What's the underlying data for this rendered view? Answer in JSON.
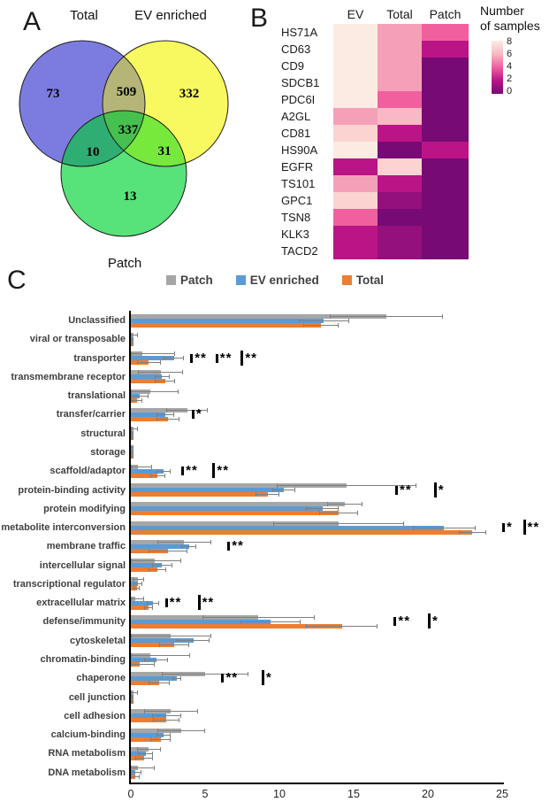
{
  "chart_data": [
    {
      "type": "venn",
      "panel_label": "A",
      "set_labels": [
        "Total",
        "EV enriched",
        "Patch"
      ],
      "regions": {
        "total": 73,
        "ev": 332,
        "patch": 13,
        "total_ev": 509,
        "total_patch": 10,
        "ev_patch": 31,
        "center": 337
      },
      "colors": {
        "total": "#7c7ce0",
        "ev": "#f8f860",
        "patch": "#57e27a",
        "total_ev": "#b5b578",
        "total_patch": "#2fae74",
        "ev_patch": "#77e93c",
        "center": "#46c04e",
        "outline": "#1a1a1a"
      }
    },
    {
      "type": "heatmap",
      "panel_label": "B",
      "columns": [
        "EV",
        "Total",
        "Patch"
      ],
      "rows": [
        "HS71A",
        "CD63",
        "CD9",
        "SDCB1",
        "PDC6I",
        "A2GL",
        "CD81",
        "HS90A",
        "EGFR",
        "TS101",
        "GPC1",
        "TSN8",
        "KLK3",
        "TACD2"
      ],
      "values": [
        [
          8,
          5,
          4
        ],
        [
          8,
          5,
          2
        ],
        [
          8,
          5,
          0
        ],
        [
          8,
          5,
          0
        ],
        [
          8,
          4,
          0
        ],
        [
          5,
          6,
          0
        ],
        [
          7,
          2,
          0
        ],
        [
          8,
          0,
          2
        ],
        [
          2,
          7,
          0
        ],
        [
          5,
          2,
          0
        ],
        [
          7,
          1,
          0
        ],
        [
          4,
          0,
          0
        ],
        [
          2,
          1,
          0
        ],
        [
          2,
          1,
          0
        ]
      ],
      "palette": {
        "8": "#fcebe3",
        "7": "#fbd3d1",
        "6": "#f9b9c4",
        "5": "#f5a0b9",
        "4": "#f0609f",
        "3": "#e2449b",
        "2": "#bb1486",
        "1": "#94107d",
        "0": "#770a75"
      },
      "colorbar_title_line1": "Number",
      "colorbar_title_line2": "of samples",
      "colorbar_ticks": [
        8,
        6,
        4,
        2,
        0
      ]
    },
    {
      "type": "bar",
      "panel_label": "C",
      "orientation": "horizontal",
      "xlim": [
        0,
        25
      ],
      "x_ticks": [
        0,
        5,
        10,
        15,
        20,
        25
      ],
      "grid": false,
      "legend_position": "top",
      "categories": [
        "Unclassified",
        "viral or transposable",
        "transporter",
        "transmembrane receptor",
        "translational",
        "transfer/carrier",
        "structural",
        "storage",
        "scaffold/adaptor",
        "protein-binding activity",
        "protein modifying",
        "metabolite interconversion",
        "membrane traffic",
        "intercellular signal",
        "transcriptional regulator",
        "extracellular matrix",
        "defense/immunity",
        "cytoskeletal",
        "chromatin-binding",
        "chaperone",
        "cell junction",
        "cell adhesion",
        "calcium-binding",
        "RNA metabolism",
        "DNA metabolism"
      ],
      "series": [
        {
          "name": "Patch",
          "color": "#a6a6a6",
          "values": [
            17.2,
            0.2,
            0.8,
            2.0,
            1.3,
            3.8,
            0.2,
            0.1,
            0.5,
            14.5,
            14.4,
            14.0,
            3.6,
            1.6,
            0.5,
            0.3,
            8.6,
            2.7,
            1.3,
            5.0,
            0.2,
            2.7,
            3.4,
            1.2,
            0.5
          ],
          "errors": [
            3.8,
            0.3,
            2.2,
            1.5,
            1.9,
            1.4,
            0.3,
            0.1,
            0.9,
            4.7,
            1.2,
            4.4,
            1.8,
            1.8,
            0.4,
            0.6,
            3.8,
            2.7,
            2.7,
            2.9,
            0.3,
            1.8,
            1.6,
            0.8,
            1.1
          ]
        },
        {
          "name": "EV enriched",
          "color": "#5b9bd5",
          "values": [
            13.0,
            0.1,
            2.9,
            2.1,
            0.6,
            2.3,
            0.1,
            0.1,
            2.2,
            10.3,
            12.9,
            21.1,
            3.9,
            2.1,
            0.5,
            1.5,
            9.4,
            4.2,
            1.7,
            3.1,
            0.1,
            2.4,
            2.2,
            1.0,
            0.3
          ],
          "errors": [
            1.7,
            0.1,
            0.7,
            0.5,
            0.6,
            0.6,
            0.1,
            0.1,
            0.5,
            0.8,
            1.1,
            2.1,
            0.5,
            0.7,
            0.3,
            0.4,
            2.0,
            1.1,
            0.8,
            0.3,
            0.1,
            1.0,
            0.5,
            0.5,
            0.4
          ]
        },
        {
          "name": "Total",
          "color": "#ed7d31",
          "values": [
            12.8,
            0.1,
            1.2,
            2.3,
            0.4,
            2.5,
            0.1,
            0.1,
            1.8,
            9.2,
            14.0,
            23.0,
            2.5,
            1.8,
            0.4,
            1.2,
            14.2,
            2.9,
            0.6,
            1.9,
            0.1,
            2.4,
            2.0,
            0.9,
            0.3
          ],
          "errors": [
            1.2,
            0.1,
            0.8,
            0.7,
            0.4,
            0.8,
            0.1,
            0.1,
            0.5,
            0.8,
            1.3,
            0.9,
            1.3,
            0.6,
            0.2,
            0.3,
            2.4,
            1.0,
            1.0,
            0.7,
            0.1,
            0.9,
            0.7,
            0.6,
            0.3
          ]
        }
      ],
      "significance": [
        {
          "category": "transporter",
          "markers": [
            {
              "x": 4.0,
              "label": "**",
              "tall": false
            },
            {
              "x": 5.7,
              "label": "**",
              "tall": false
            },
            {
              "x": 7.4,
              "label": "**",
              "tall": true
            }
          ]
        },
        {
          "category": "transfer/carrier",
          "markers": [
            {
              "x": 4.1,
              "label": "*",
              "tall": false
            }
          ]
        },
        {
          "category": "scaffold/adaptor",
          "markers": [
            {
              "x": 3.4,
              "label": "**",
              "tall": false
            },
            {
              "x": 5.5,
              "label": "**",
              "tall": true
            }
          ]
        },
        {
          "category": "protein-binding activity",
          "markers": [
            {
              "x": 17.8,
              "label": "**",
              "tall": false
            },
            {
              "x": 20.4,
              "label": "*",
              "tall": true
            }
          ]
        },
        {
          "category": "metabolite interconversion",
          "markers": [
            {
              "x": 25.0,
              "label": "*",
              "tall": false
            },
            {
              "x": 26.4,
              "label": "**",
              "tall": true
            }
          ]
        },
        {
          "category": "membrane traffic",
          "markers": [
            {
              "x": 6.5,
              "label": "**",
              "tall": false
            }
          ]
        },
        {
          "category": "extracellular matrix",
          "markers": [
            {
              "x": 2.3,
              "label": "**",
              "tall": false
            },
            {
              "x": 4.5,
              "label": "**",
              "tall": true
            }
          ]
        },
        {
          "category": "defense/immunity",
          "markers": [
            {
              "x": 17.7,
              "label": "**",
              "tall": false
            },
            {
              "x": 20.0,
              "label": "*",
              "tall": true
            }
          ]
        },
        {
          "category": "chaperone",
          "markers": [
            {
              "x": 6.1,
              "label": "**",
              "tall": false
            },
            {
              "x": 8.8,
              "label": "*",
              "tall": true
            }
          ]
        }
      ]
    }
  ]
}
